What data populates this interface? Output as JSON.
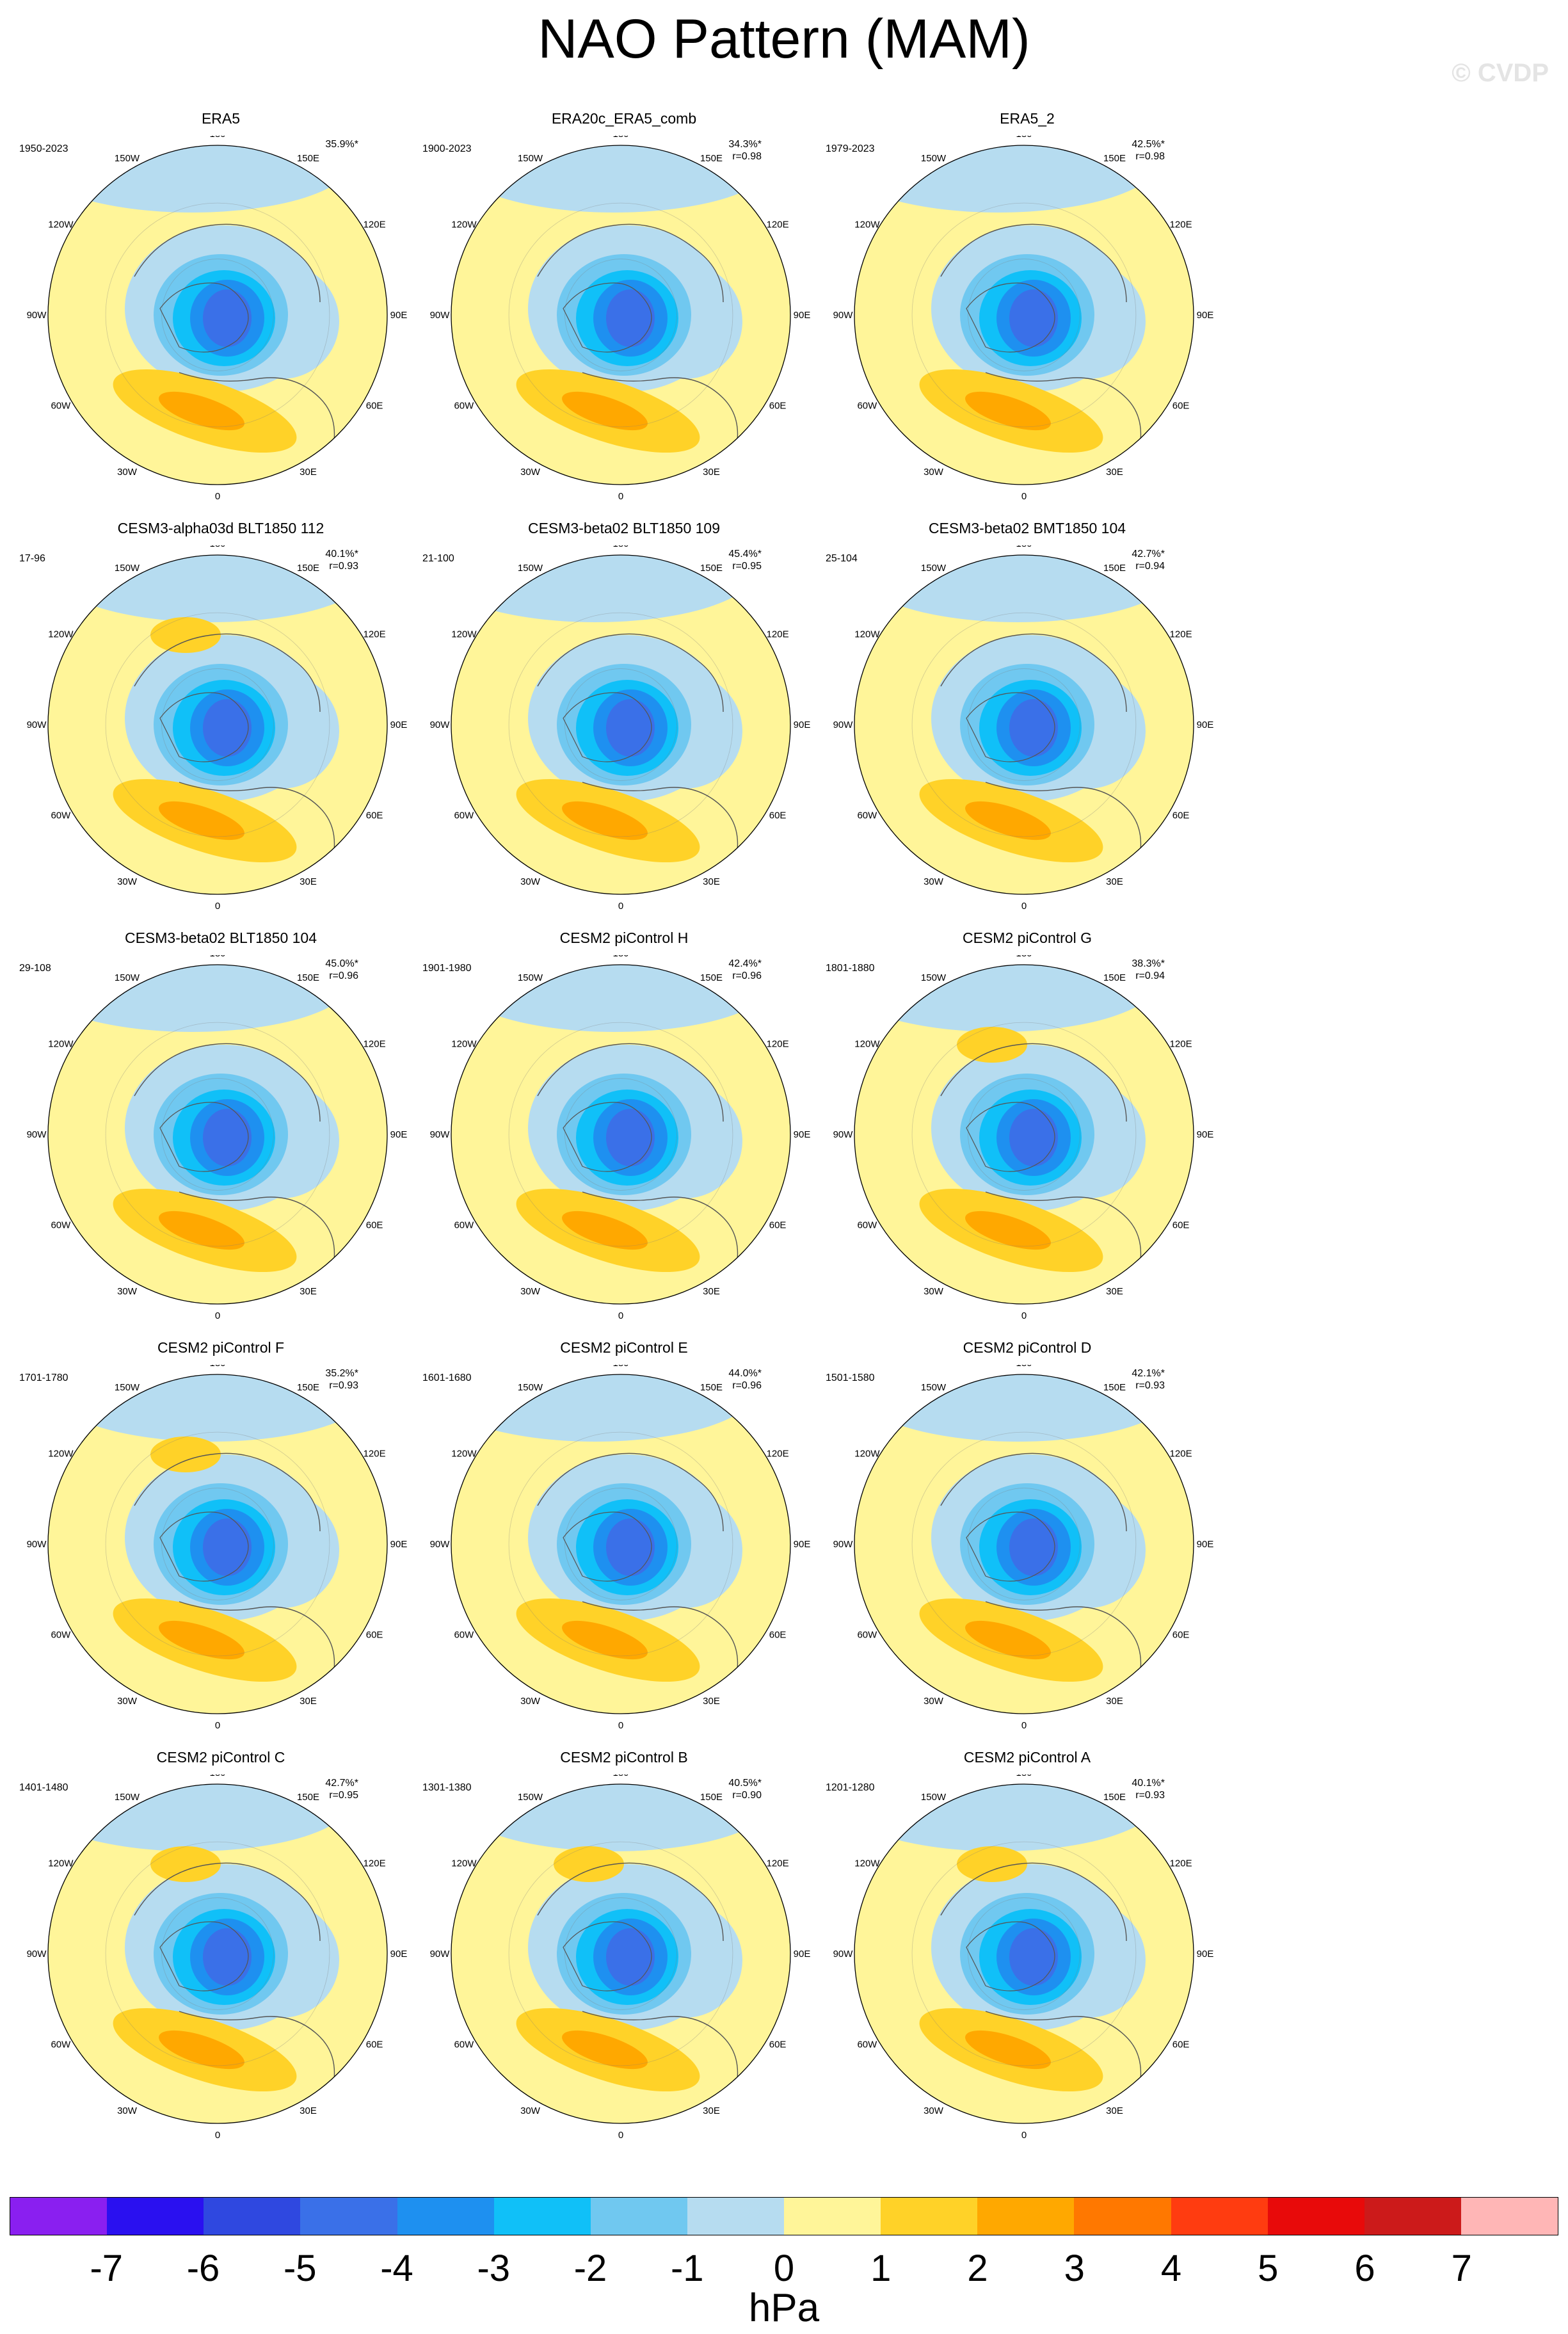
{
  "title": "NAO Pattern (MAM)",
  "watermark": "© CVDP",
  "lon_labels": [
    "180",
    "150E",
    "120E",
    "90E",
    "60E",
    "30E",
    "0",
    "30W",
    "60W",
    "90W",
    "120W",
    "150W"
  ],
  "panels": [
    {
      "title": "ERA5",
      "period": "1950-2023",
      "pct": "35.9%*",
      "r": ""
    },
    {
      "title": "ERA20c_ERA5_comb",
      "period": "1900-2023",
      "pct": "34.3%*",
      "r": "r=0.98"
    },
    {
      "title": "ERA5_2",
      "period": "1979-2023",
      "pct": "42.5%*",
      "r": "r=0.98"
    },
    {
      "title": "CESM3-alpha03d BLT1850 112",
      "period": "17-96",
      "pct": "40.1%*",
      "r": "r=0.93"
    },
    {
      "title": "CESM3-beta02 BLT1850 109",
      "period": "21-100",
      "pct": "45.4%*",
      "r": "r=0.95"
    },
    {
      "title": "CESM3-beta02 BMT1850 104",
      "period": "25-104",
      "pct": "42.7%*",
      "r": "r=0.94"
    },
    {
      "title": "CESM3-beta02 BLT1850 104",
      "period": "29-108",
      "pct": "45.0%*",
      "r": "r=0.96"
    },
    {
      "title": "CESM2 piControl H",
      "period": "1901-1980",
      "pct": "42.4%*",
      "r": "r=0.96"
    },
    {
      "title": "CESM2 piControl G",
      "period": "1801-1880",
      "pct": "38.3%*",
      "r": "r=0.94"
    },
    {
      "title": "CESM2 piControl F",
      "period": "1701-1780",
      "pct": "35.2%*",
      "r": "r=0.93"
    },
    {
      "title": "CESM2 piControl E",
      "period": "1601-1680",
      "pct": "44.0%*",
      "r": "r=0.96"
    },
    {
      "title": "CESM2 piControl D",
      "period": "1501-1580",
      "pct": "42.1%*",
      "r": "r=0.93"
    },
    {
      "title": "CESM2 piControl C",
      "period": "1401-1480",
      "pct": "42.7%*",
      "r": "r=0.95"
    },
    {
      "title": "CESM2 piControl B",
      "period": "1301-1380",
      "pct": "40.5%*",
      "r": "r=0.90"
    },
    {
      "title": "CESM2 piControl A",
      "period": "1201-1280",
      "pct": "40.1%*",
      "r": "r=0.93"
    }
  ],
  "colorbar": {
    "units": "hPa",
    "labels": [
      "-7",
      "-6",
      "-5",
      "-4",
      "-3",
      "-2",
      "-1",
      "0",
      "1",
      "2",
      "3",
      "4",
      "5",
      "6",
      "7"
    ],
    "colors": [
      "#8a1ff0",
      "#2a10f0",
      "#2f48e0",
      "#3a70e8",
      "#1e90f0",
      "#10c0f8",
      "#70c8f0",
      "#b6dcf0",
      "#fff599",
      "#ffd228",
      "#ffa800",
      "#ff7800",
      "#ff3c10",
      "#e80a0a",
      "#cc1a1a",
      "#ffb6b6"
    ]
  },
  "palette": {
    "neg1": "#b6dcf0",
    "neg2": "#70c8f0",
    "neg3": "#10c0f8",
    "neg4": "#1e90f0",
    "neg5": "#3a70e8",
    "pos0": "#fff599",
    "pos1": "#ffd228",
    "pos2": "#ffa800"
  }
}
